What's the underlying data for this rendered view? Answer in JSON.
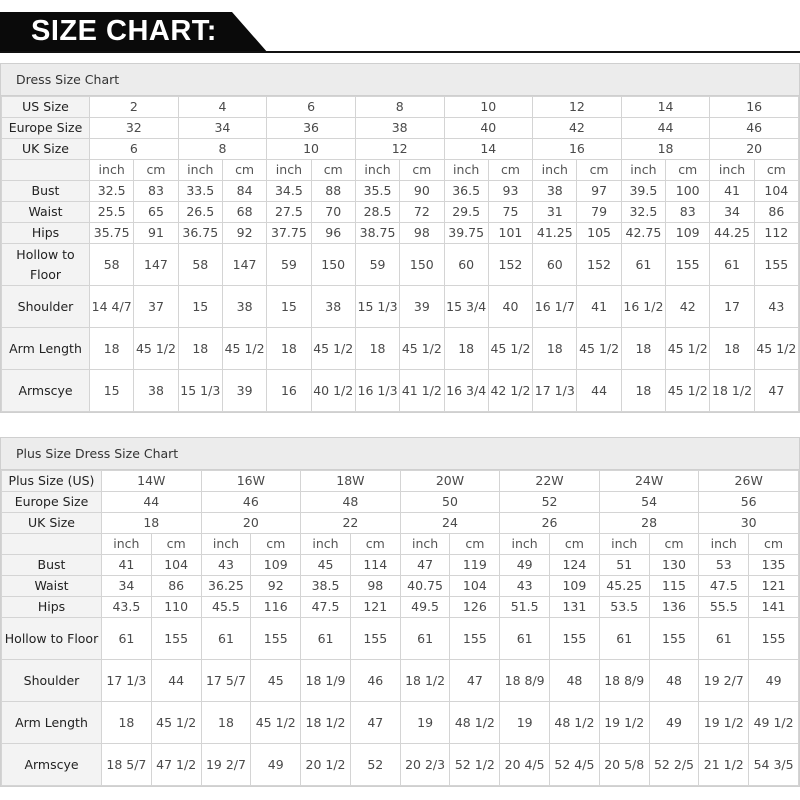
{
  "banner": {
    "title": "SIZE CHART:"
  },
  "dress_chart": {
    "title": "Dress Size Chart",
    "size_rows": [
      {
        "label": "US Size",
        "values": [
          "2",
          "4",
          "6",
          "8",
          "10",
          "12",
          "14",
          "16"
        ]
      },
      {
        "label": "Europe Size",
        "values": [
          "32",
          "34",
          "36",
          "38",
          "40",
          "42",
          "44",
          "46"
        ]
      },
      {
        "label": "UK Size",
        "values": [
          "6",
          "8",
          "10",
          "12",
          "14",
          "16",
          "18",
          "20"
        ]
      }
    ],
    "unit_labels": [
      "inch",
      "cm"
    ],
    "measure_rows": [
      {
        "label": "Bust",
        "values": [
          "32.5",
          "83",
          "33.5",
          "84",
          "34.5",
          "88",
          "35.5",
          "90",
          "36.5",
          "93",
          "38",
          "97",
          "39.5",
          "100",
          "41",
          "104"
        ]
      },
      {
        "label": "Waist",
        "values": [
          "25.5",
          "65",
          "26.5",
          "68",
          "27.5",
          "70",
          "28.5",
          "72",
          "29.5",
          "75",
          "31",
          "79",
          "32.5",
          "83",
          "34",
          "86"
        ]
      },
      {
        "label": "Hips",
        "values": [
          "35.75",
          "91",
          "36.75",
          "92",
          "37.75",
          "96",
          "38.75",
          "98",
          "39.75",
          "101",
          "41.25",
          "105",
          "42.75",
          "109",
          "44.25",
          "112"
        ]
      },
      {
        "label": "Hollow to Floor",
        "values": [
          "58",
          "147",
          "58",
          "147",
          "59",
          "150",
          "59",
          "150",
          "60",
          "152",
          "60",
          "152",
          "61",
          "155",
          "61",
          "155"
        ]
      },
      {
        "label": "Shoulder",
        "values": [
          "14 4/7",
          "37",
          "15",
          "38",
          "15",
          "38",
          "15 1/3",
          "39",
          "15 3/4",
          "40",
          "16 1/7",
          "41",
          "16 1/2",
          "42",
          "17",
          "43"
        ]
      },
      {
        "label": "Arm Length",
        "values": [
          "18",
          "45 1/2",
          "18",
          "45 1/2",
          "18",
          "45 1/2",
          "18",
          "45 1/2",
          "18",
          "45 1/2",
          "18",
          "45 1/2",
          "18",
          "45 1/2",
          "18",
          "45 1/2"
        ]
      },
      {
        "label": "Armscye",
        "values": [
          "15",
          "38",
          "15 1/3",
          "39",
          "16",
          "40 1/2",
          "16 1/3",
          "41 1/2",
          "16 3/4",
          "42 1/2",
          "17 1/3",
          "44",
          "18",
          "45 1/2",
          "18 1/2",
          "47"
        ]
      }
    ]
  },
  "plus_chart": {
    "title": "Plus Size Dress Size Chart",
    "size_rows": [
      {
        "label": "Plus Size (US)",
        "values": [
          "14W",
          "16W",
          "18W",
          "20W",
          "22W",
          "24W",
          "26W"
        ]
      },
      {
        "label": "Europe Size",
        "values": [
          "44",
          "46",
          "48",
          "50",
          "52",
          "54",
          "56"
        ]
      },
      {
        "label": "UK Size",
        "values": [
          "18",
          "20",
          "22",
          "24",
          "26",
          "28",
          "30"
        ]
      }
    ],
    "unit_labels": [
      "inch",
      "cm"
    ],
    "measure_rows": [
      {
        "label": "Bust",
        "values": [
          "41",
          "104",
          "43",
          "109",
          "45",
          "114",
          "47",
          "119",
          "49",
          "124",
          "51",
          "130",
          "53",
          "135"
        ]
      },
      {
        "label": "Waist",
        "values": [
          "34",
          "86",
          "36.25",
          "92",
          "38.5",
          "98",
          "40.75",
          "104",
          "43",
          "109",
          "45.25",
          "115",
          "47.5",
          "121"
        ]
      },
      {
        "label": "Hips",
        "values": [
          "43.5",
          "110",
          "45.5",
          "116",
          "47.5",
          "121",
          "49.5",
          "126",
          "51.5",
          "131",
          "53.5",
          "136",
          "55.5",
          "141"
        ]
      },
      {
        "label": "Hollow to Floor",
        "values": [
          "61",
          "155",
          "61",
          "155",
          "61",
          "155",
          "61",
          "155",
          "61",
          "155",
          "61",
          "155",
          "61",
          "155"
        ]
      },
      {
        "label": "Shoulder",
        "values": [
          "17 1/3",
          "44",
          "17 5/7",
          "45",
          "18 1/9",
          "46",
          "18 1/2",
          "47",
          "18 8/9",
          "48",
          "18 8/9",
          "48",
          "19 2/7",
          "49"
        ]
      },
      {
        "label": "Arm Length",
        "values": [
          "18",
          "45 1/2",
          "18",
          "45 1/2",
          "18 1/2",
          "47",
          "19",
          "48 1/2",
          "19",
          "48 1/2",
          "19 1/2",
          "49",
          "19 1/2",
          "49 1/2"
        ]
      },
      {
        "label": "Armscye",
        "values": [
          "18 5/7",
          "47 1/2",
          "19 2/7",
          "49",
          "20 1/2",
          "52",
          "20 2/3",
          "52 1/2",
          "20 4/5",
          "52 4/5",
          "20 5/8",
          "52 2/5",
          "21 1/2",
          "54 3/5"
        ]
      }
    ]
  }
}
